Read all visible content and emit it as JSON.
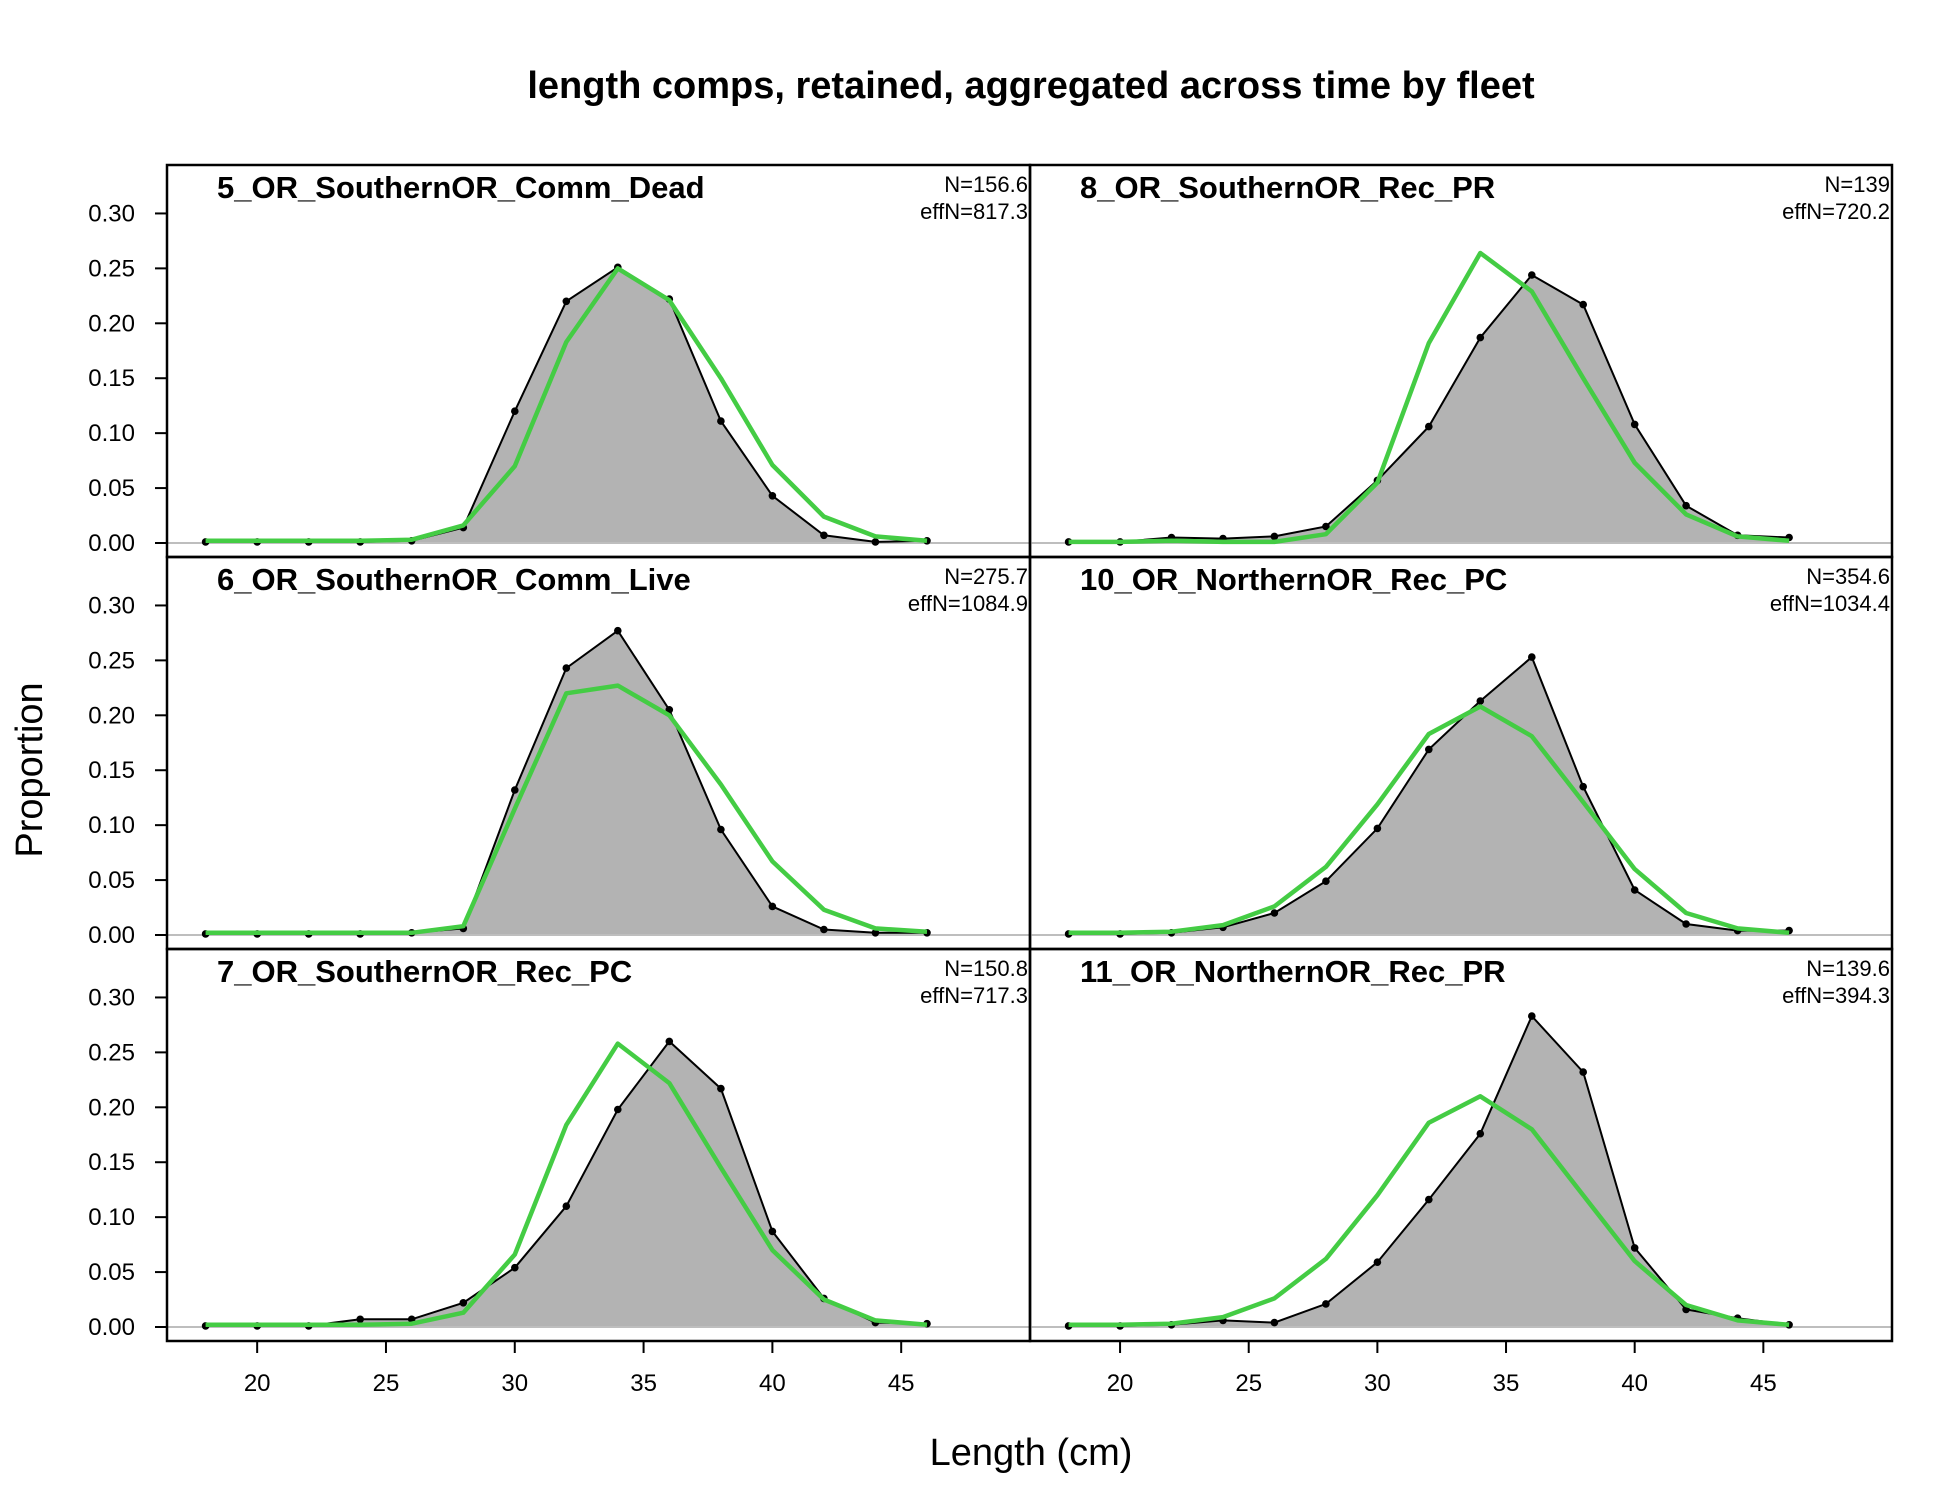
{
  "title": "length comps, retained, aggregated across time by fleet",
  "xlabel": "Length (cm)",
  "ylabel": "Proportion",
  "x_ticks": [
    20,
    25,
    30,
    35,
    40,
    45
  ],
  "y_ticks": [
    "0.00",
    "0.05",
    "0.10",
    "0.15",
    "0.20",
    "0.25",
    "0.30"
  ],
  "colors": {
    "observed_fill": "#b3b3b3",
    "observed_line": "#000000",
    "expected_line": "#44cc44",
    "zero_line": "#bebebe"
  },
  "chart_data": {
    "type": "area",
    "title": "length comps, retained, aggregated across time by fleet",
    "xlabel": "Length (cm)",
    "ylabel": "Proportion",
    "xlim": [
      16.5,
      50
    ],
    "ylim": [
      0,
      0.335
    ],
    "grid": false,
    "x": [
      18,
      20,
      22,
      24,
      26,
      28,
      30,
      32,
      34,
      36,
      38,
      40,
      42,
      44,
      46
    ],
    "panels": [
      {
        "title": "5_OR_SouthernOR_Comm_Dead",
        "n_label": "N=156.6",
        "effn_label": "effN=817.3",
        "series": [
          {
            "name": "observed",
            "values": [
              0.001,
              0.001,
              0.001,
              0.001,
              0.002,
              0.014,
              0.12,
              0.22,
              0.251,
              0.222,
              0.111,
              0.043,
              0.007,
              0.001,
              0.002
            ]
          },
          {
            "name": "expected",
            "values": [
              0.002,
              0.002,
              0.002,
              0.002,
              0.003,
              0.016,
              0.07,
              0.183,
              0.25,
              0.221,
              0.15,
              0.071,
              0.024,
              0.006,
              0.002
            ]
          }
        ]
      },
      {
        "title": "8_OR_SouthernOR_Rec_PR",
        "n_label": "N=139",
        "effn_label": "effN=720.2",
        "series": [
          {
            "name": "observed",
            "values": [
              0.001,
              0.001,
              0.005,
              0.004,
              0.006,
              0.015,
              0.057,
              0.106,
              0.187,
              0.244,
              0.217,
              0.108,
              0.034,
              0.007,
              0.005
            ]
          },
          {
            "name": "expected",
            "values": [
              0.001,
              0.001,
              0.002,
              0.001,
              0.001,
              0.008,
              0.055,
              0.182,
              0.264,
              0.229,
              0.15,
              0.073,
              0.026,
              0.006,
              0.002
            ]
          }
        ]
      },
      {
        "title": "6_OR_SouthernOR_Comm_Live",
        "n_label": "N=275.7",
        "effn_label": "effN=1084.9",
        "series": [
          {
            "name": "observed",
            "values": [
              0.001,
              0.001,
              0.001,
              0.001,
              0.002,
              0.006,
              0.132,
              0.243,
              0.277,
              0.205,
              0.096,
              0.026,
              0.005,
              0.002,
              0.002
            ]
          },
          {
            "name": "expected",
            "values": [
              0.002,
              0.002,
              0.002,
              0.002,
              0.002,
              0.008,
              0.115,
              0.22,
              0.227,
              0.2,
              0.137,
              0.067,
              0.023,
              0.006,
              0.003
            ]
          }
        ]
      },
      {
        "title": "10_OR_NorthernOR_Rec_PC",
        "n_label": "N=354.6",
        "effn_label": "effN=1034.4",
        "series": [
          {
            "name": "observed",
            "values": [
              0.001,
              0.001,
              0.002,
              0.007,
              0.02,
              0.049,
              0.097,
              0.169,
              0.213,
              0.253,
              0.135,
              0.041,
              0.01,
              0.004,
              0.004
            ]
          },
          {
            "name": "expected",
            "values": [
              0.002,
              0.002,
              0.003,
              0.009,
              0.026,
              0.062,
              0.119,
              0.183,
              0.208,
              0.181,
              0.121,
              0.06,
              0.02,
              0.006,
              0.002
            ]
          }
        ]
      },
      {
        "title": "7_OR_SouthernOR_Rec_PC",
        "n_label": "N=150.8",
        "effn_label": "effN=717.3",
        "series": [
          {
            "name": "observed",
            "values": [
              0.001,
              0.001,
              0.001,
              0.007,
              0.007,
              0.022,
              0.054,
              0.11,
              0.198,
              0.26,
              0.217,
              0.087,
              0.026,
              0.004,
              0.003
            ]
          },
          {
            "name": "expected",
            "values": [
              0.002,
              0.002,
              0.002,
              0.002,
              0.003,
              0.013,
              0.066,
              0.184,
              0.258,
              0.222,
              0.145,
              0.07,
              0.025,
              0.006,
              0.002
            ]
          }
        ]
      },
      {
        "title": "11_OR_NorthernOR_Rec_PR",
        "n_label": "N=139.6",
        "effn_label": "effN=394.3",
        "series": [
          {
            "name": "observed",
            "values": [
              0.001,
              0.001,
              0.002,
              0.006,
              0.004,
              0.021,
              0.059,
              0.116,
              0.176,
              0.283,
              0.232,
              0.072,
              0.016,
              0.008,
              0.002
            ]
          },
          {
            "name": "expected",
            "values": [
              0.002,
              0.002,
              0.003,
              0.009,
              0.026,
              0.062,
              0.12,
              0.186,
              0.21,
              0.18,
              0.12,
              0.06,
              0.02,
              0.006,
              0.002
            ]
          }
        ]
      }
    ]
  }
}
